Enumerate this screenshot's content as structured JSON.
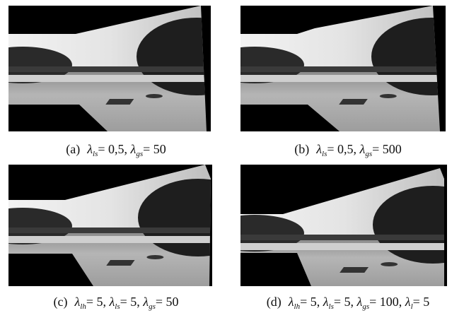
{
  "panels": [
    {
      "label": "(a)",
      "terms": [
        {
          "symbol": "λ",
          "sub": "ls",
          "value": "= 0,5,"
        },
        {
          "symbol": "λ",
          "sub": "gs",
          "value": "= 50"
        }
      ]
    },
    {
      "label": "(b)",
      "terms": [
        {
          "symbol": "λ",
          "sub": "ls",
          "value": "= 0,5,"
        },
        {
          "symbol": "λ",
          "sub": "gs",
          "value": "= 500"
        }
      ]
    },
    {
      "label": "(c)",
      "terms": [
        {
          "symbol": "λ",
          "sub": "lh",
          "value": "= 5,"
        },
        {
          "symbol": "λ",
          "sub": "ls",
          "value": "= 5,"
        },
        {
          "symbol": "λ",
          "sub": "gs",
          "value": "= 50"
        }
      ]
    },
    {
      "label": "(d)",
      "terms": [
        {
          "symbol": "λ",
          "sub": "lh",
          "value": "= 5,"
        },
        {
          "symbol": "λ",
          "sub": "ls",
          "value": "= 5,"
        },
        {
          "symbol": "λ",
          "sub": "gs",
          "value": "= 100,"
        },
        {
          "symbol": "λ",
          "sub": "l",
          "value": "= 5"
        }
      ]
    }
  ]
}
